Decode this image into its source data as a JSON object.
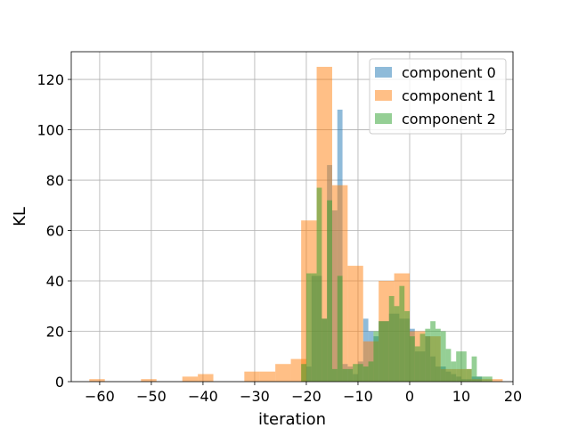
{
  "chart_data": {
    "type": "bar",
    "subtype": "histogram",
    "title": "",
    "xlabel": "iteration",
    "ylabel": "KL",
    "xlim": [
      -65.5,
      20
    ],
    "ylim": [
      0,
      131
    ],
    "xticks": [
      -60,
      -50,
      -40,
      -30,
      -20,
      -10,
      0,
      10,
      20
    ],
    "yticks": [
      0,
      20,
      40,
      60,
      80,
      100,
      120
    ],
    "xtick_labels": [
      "−60",
      "−50",
      "−40",
      "−30",
      "−20",
      "−10",
      "0",
      "10",
      "20"
    ],
    "ytick_labels": [
      "0",
      "20",
      "40",
      "60",
      "80",
      "100",
      "120"
    ],
    "grid": true,
    "legend_position": "top-right",
    "series": [
      {
        "name": "component 0",
        "color": "#1f77b4",
        "alpha": 0.5,
        "bins": [
          [
            -20,
            -19,
            6
          ],
          [
            -19,
            -18,
            42
          ],
          [
            -18,
            -17,
            42
          ],
          [
            -17,
            -16,
            25
          ],
          [
            -16,
            -15,
            86
          ],
          [
            -15,
            -14,
            68
          ],
          [
            -14,
            -13,
            108
          ],
          [
            -13,
            -12,
            7
          ],
          [
            -12,
            -11,
            6
          ],
          [
            -11,
            -10,
            3
          ],
          [
            -10,
            -9,
            8
          ],
          [
            -9,
            -8,
            25
          ],
          [
            -8,
            -7,
            20
          ],
          [
            -7,
            -6,
            18
          ],
          [
            -6,
            -5,
            24
          ],
          [
            -5,
            -4,
            24
          ],
          [
            -4,
            -3,
            27
          ],
          [
            -3,
            -2,
            27
          ],
          [
            -2,
            -1,
            25
          ],
          [
            -1,
            0,
            25
          ],
          [
            0,
            1,
            21
          ],
          [
            1,
            2,
            12
          ],
          [
            2,
            3,
            12
          ],
          [
            3,
            4,
            18
          ],
          [
            4,
            5,
            10
          ],
          [
            5,
            6,
            6
          ],
          [
            6,
            7,
            6
          ],
          [
            7,
            8,
            4
          ],
          [
            8,
            9,
            3
          ],
          [
            9,
            10,
            2
          ],
          [
            10,
            11,
            1
          ],
          [
            11,
            12,
            1
          ],
          [
            12,
            13,
            2
          ],
          [
            13,
            14,
            2
          ]
        ]
      },
      {
        "name": "component 1",
        "color": "#ff7f0e",
        "alpha": 0.5,
        "bins": [
          [
            -62,
            -59,
            1
          ],
          [
            -52,
            -49,
            1
          ],
          [
            -44,
            -41,
            2
          ],
          [
            -41,
            -38,
            3
          ],
          [
            -32,
            -29,
            4
          ],
          [
            -29,
            -26,
            4
          ],
          [
            -26,
            -23,
            7
          ],
          [
            -23,
            -20,
            9
          ],
          [
            -21,
            -18,
            64
          ],
          [
            -18,
            -15,
            125
          ],
          [
            -15,
            -12,
            78
          ],
          [
            -12,
            -9,
            46
          ],
          [
            -9,
            -6,
            16
          ],
          [
            -6,
            -3,
            40
          ],
          [
            -3,
            0,
            43
          ],
          [
            0,
            3,
            20
          ],
          [
            3,
            6,
            18
          ],
          [
            6,
            9,
            5
          ],
          [
            9,
            12,
            5
          ],
          [
            12,
            15,
            1
          ],
          [
            15,
            18,
            1
          ]
        ]
      },
      {
        "name": "component 2",
        "color": "#2ca02c",
        "alpha": 0.5,
        "bins": [
          [
            -21,
            -20,
            7
          ],
          [
            -20,
            -19,
            43
          ],
          [
            -19,
            -18,
            43
          ],
          [
            -18,
            -17,
            77
          ],
          [
            -17,
            -16,
            25
          ],
          [
            -16,
            -15,
            72
          ],
          [
            -15,
            -14,
            5
          ],
          [
            -14,
            -13,
            42
          ],
          [
            -13,
            -12,
            5
          ],
          [
            -12,
            -11,
            5
          ],
          [
            -11,
            -10,
            7
          ],
          [
            -10,
            -9,
            7
          ],
          [
            -9,
            -8,
            6
          ],
          [
            -8,
            -7,
            8
          ],
          [
            -7,
            -6,
            20
          ],
          [
            -6,
            -5,
            24
          ],
          [
            -5,
            -4,
            24
          ],
          [
            -4,
            -3,
            34
          ],
          [
            -3,
            -2,
            30
          ],
          [
            -2,
            -1,
            38
          ],
          [
            -1,
            0,
            28
          ],
          [
            0,
            1,
            18
          ],
          [
            1,
            2,
            14
          ],
          [
            2,
            3,
            19
          ],
          [
            3,
            4,
            21
          ],
          [
            4,
            5,
            24
          ],
          [
            5,
            6,
            21
          ],
          [
            6,
            7,
            20
          ],
          [
            7,
            8,
            13
          ],
          [
            8,
            9,
            8
          ],
          [
            9,
            10,
            12
          ],
          [
            10,
            11,
            12
          ],
          [
            11,
            12,
            5
          ],
          [
            12,
            13,
            10
          ],
          [
            13,
            14,
            2
          ],
          [
            14,
            15,
            2
          ],
          [
            15,
            16,
            2
          ]
        ]
      }
    ]
  }
}
